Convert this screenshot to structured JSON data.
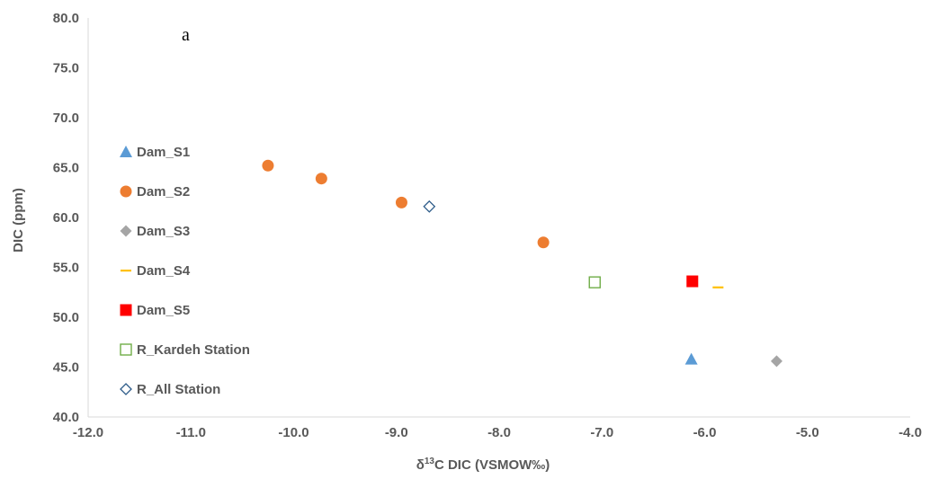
{
  "chart_data": {
    "type": "scatter",
    "xlabel_prefix": "δ",
    "xlabel_sup": "13",
    "xlabel_suffix": "C DIC (VSMOW‰)",
    "ylabel": "DIC (ppm)",
    "xlim": [
      -12.0,
      -4.0
    ],
    "ylim": [
      40.0,
      80.0
    ],
    "x_ticks": [
      -12.0,
      -11.0,
      -10.0,
      -9.0,
      -8.0,
      -7.0,
      -6.0,
      -5.0,
      -4.0
    ],
    "y_ticks": [
      40.0,
      45.0,
      50.0,
      55.0,
      60.0,
      65.0,
      70.0,
      75.0,
      80.0
    ],
    "x_tick_labels": [
      "-12.0",
      "-11.0",
      "-10.0",
      "-9.0",
      "-8.0",
      "-7.0",
      "-6.0",
      "-5.0",
      "-4.0"
    ],
    "y_tick_labels": [
      "40.0",
      "45.0",
      "50.0",
      "55.0",
      "60.0",
      "65.0",
      "70.0",
      "75.0",
      "80.0"
    ],
    "grid": false,
    "legend_position": "left",
    "annotation": "a",
    "series": [
      {
        "name": "Dam_S1",
        "marker": "triangle",
        "color": "#5B9BD5",
        "points": [
          {
            "x": -6.13,
            "y": 45.8
          }
        ]
      },
      {
        "name": "Dam_S2",
        "marker": "circle",
        "color": "#ED7D31",
        "points": [
          {
            "x": -10.25,
            "y": 65.2
          },
          {
            "x": -9.73,
            "y": 63.9
          },
          {
            "x": -8.95,
            "y": 61.5
          },
          {
            "x": -7.57,
            "y": 57.5
          }
        ]
      },
      {
        "name": "Dam_S3",
        "marker": "diamond",
        "color": "#A5A5A5",
        "points": [
          {
            "x": -5.3,
            "y": 45.6
          }
        ]
      },
      {
        "name": "Dam_S4",
        "marker": "dash",
        "color": "#FFC000",
        "points": [
          {
            "x": -5.87,
            "y": 53.0
          }
        ]
      },
      {
        "name": "Dam_S5",
        "marker": "square",
        "color": "#FF0000",
        "points": [
          {
            "x": -6.12,
            "y": 53.6
          }
        ]
      },
      {
        "name": "R_Kardeh Station",
        "marker": "square-open",
        "color": "#70AD47",
        "points": [
          {
            "x": -7.07,
            "y": 53.5
          }
        ]
      },
      {
        "name": "R_All Station",
        "marker": "diamond-open",
        "color": "#2E5C8A",
        "points": [
          {
            "x": -8.68,
            "y": 61.1
          }
        ]
      }
    ]
  }
}
